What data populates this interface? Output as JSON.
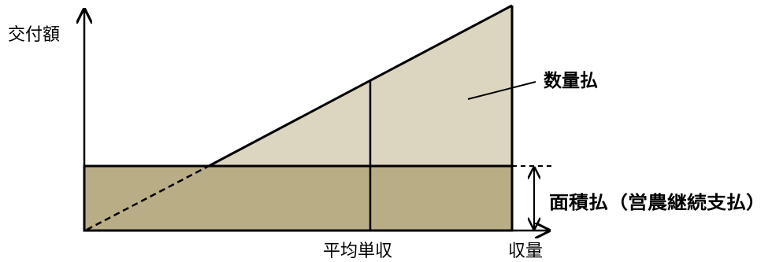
{
  "labels": {
    "y_axis": "交付額",
    "quantity_payment": "数量払",
    "area_payment": "面積払（営農継続支払）",
    "average_yield": "平均単収",
    "x_axis": "収量"
  },
  "colors": {
    "area_fill": "#b9ad86",
    "quantity_fill": "#dcd6c1",
    "line": "#000000",
    "background": "#ffffff"
  }
}
